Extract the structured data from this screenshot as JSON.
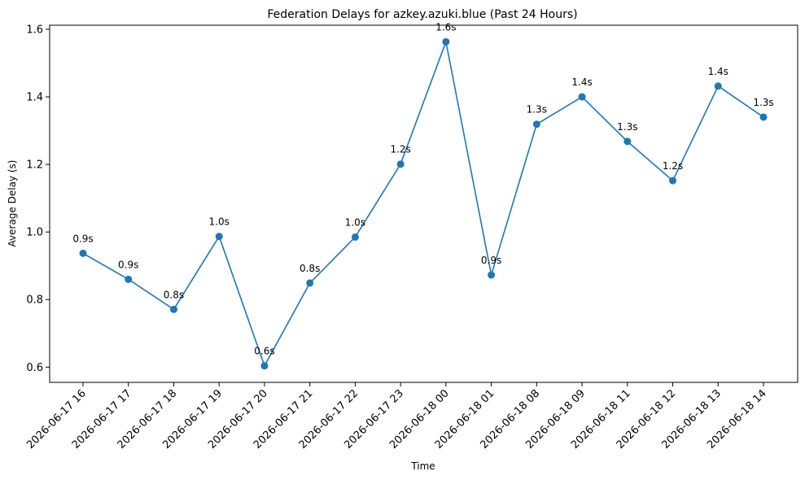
{
  "chart_data": {
    "type": "line",
    "title": "Federation Delays for azkey.azuki.blue (Past 24 Hours)",
    "xlabel": "Time",
    "ylabel": "Average Delay (s)",
    "categories": [
      "2026-06-17 16",
      "2026-06-17 17",
      "2026-06-17 18",
      "2026-06-17 19",
      "2026-06-17 20",
      "2026-06-17 21",
      "2026-06-17 22",
      "2026-06-17 23",
      "2026-06-18 00",
      "2026-06-18 01",
      "2026-06-18 08",
      "2026-06-18 09",
      "2026-06-18 11",
      "2026-06-18 12",
      "2026-06-18 13",
      "2026-06-18 14"
    ],
    "series": [
      {
        "values": [
          0.937,
          0.86,
          0.771,
          0.987,
          0.604,
          0.849,
          0.985,
          1.201,
          1.563,
          0.873,
          1.319,
          1.4,
          1.268,
          1.152,
          1.432,
          1.34
        ],
        "labels": [
          "0.9s",
          "0.9s",
          "0.8s",
          "1.0s",
          "0.6s",
          "0.8s",
          "1.0s",
          "1.2s",
          "1.6s",
          "0.9s",
          "1.3s",
          "1.4s",
          "1.3s",
          "1.2s",
          "1.4s",
          "1.3s"
        ]
      }
    ],
    "yticks": [
      0.6,
      0.8,
      1.0,
      1.2,
      1.4,
      1.6
    ],
    "ytick_labels": [
      "0.6",
      "0.8",
      "1.0",
      "1.2",
      "1.4",
      "1.6"
    ],
    "ylim": [
      0.555,
      1.612
    ],
    "grid": false,
    "line_color": "#1f77b4",
    "marker": "circle"
  }
}
